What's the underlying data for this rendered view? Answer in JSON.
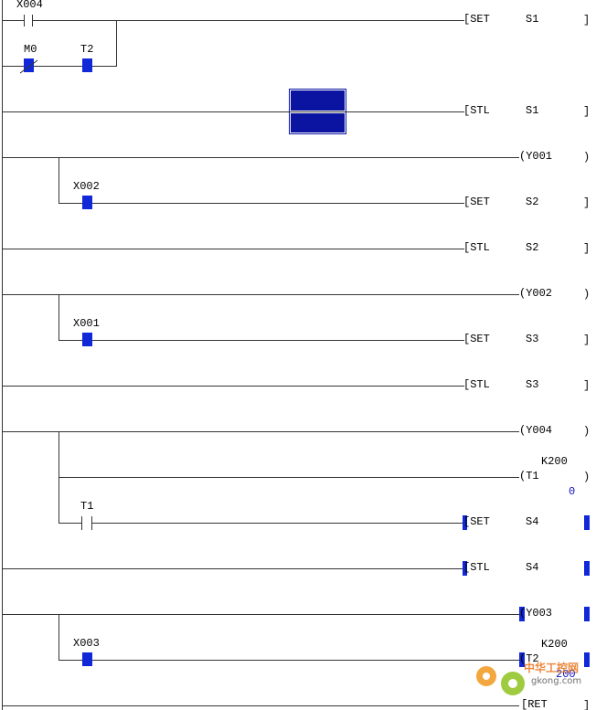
{
  "contacts": {
    "x004": "X004",
    "m0": "M0",
    "t2": "T2",
    "x002": "X002",
    "x001": "X001",
    "t1": "T1",
    "x003": "X003"
  },
  "instructions": {
    "set": "[SET",
    "stl": "[STL",
    "ret": "[RET"
  },
  "operands": {
    "s1": "S1",
    "s2": "S2",
    "s3": "S3",
    "s4": "S4"
  },
  "coils": {
    "y001": "(Y001",
    "y002": "(Y002",
    "y004": "(Y004",
    "y003": "(Y003",
    "t1": "(T1",
    "t2": "(T2"
  },
  "timer_settings": {
    "t1_k": "K200",
    "t1_current": "0",
    "t2_k": "K200",
    "t2_current": "200"
  },
  "brackets": {
    "close_square": "]",
    "close_paren": ")"
  },
  "watermark": {
    "title": "中华工控网",
    "url": "gkong.com"
  },
  "colors": {
    "selection": "#0a14a0",
    "contact_highlight": "#1028d8",
    "line": "#333333"
  }
}
